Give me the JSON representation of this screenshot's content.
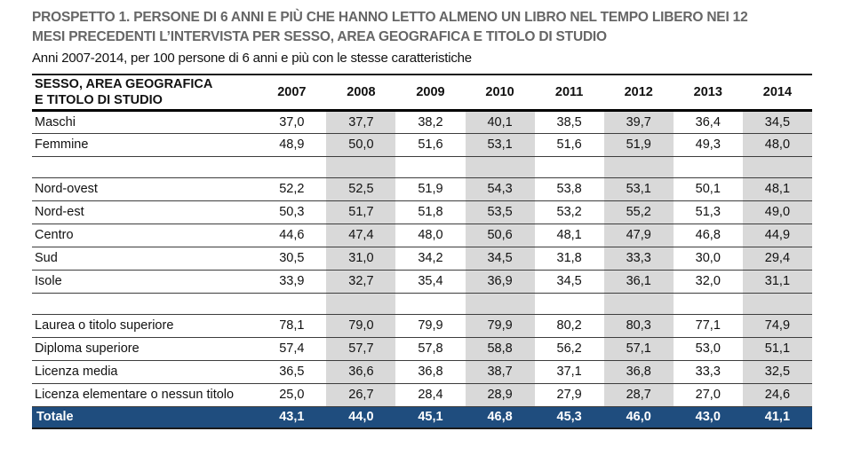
{
  "page": {
    "title_line1": "PROSPETTO 1. PERSONE DI 6 ANNI E PIÙ CHE HANNO LETTO ALMENO UN LIBRO NEL TEMPO LIBERO NEI 12",
    "title_line2": "MESI PRECEDENTI L’INTERVISTA PER SESSO, AREA GEOGRAFICA E TITOLO DI STUDIO",
    "subtitle": "Anni 2007-2014, per 100 persone di 6 anni e più con le stesse caratteristiche"
  },
  "table": {
    "header": {
      "label_line1": "SESSO, AREA GEOGRAFICA",
      "label_line2": "E TITOLO DI STUDIO",
      "years": [
        "2007",
        "2008",
        "2009",
        "2010",
        "2011",
        "2012",
        "2013",
        "2014"
      ]
    },
    "shaded_years": [
      "2008",
      "2010",
      "2012",
      "2014"
    ],
    "sections": [
      {
        "name": "sesso",
        "rows": [
          {
            "label": "Maschi",
            "values": [
              "37,0",
              "37,7",
              "38,2",
              "40,1",
              "38,5",
              "39,7",
              "36,4",
              "34,5"
            ]
          },
          {
            "label": "Femmine",
            "values": [
              "48,9",
              "50,0",
              "51,6",
              "53,1",
              "51,6",
              "51,9",
              "49,3",
              "48,0"
            ]
          }
        ]
      },
      {
        "name": "area-geografica",
        "rows": [
          {
            "label": "Nord-ovest",
            "values": [
              "52,2",
              "52,5",
              "51,9",
              "54,3",
              "53,8",
              "53,1",
              "50,1",
              "48,1"
            ]
          },
          {
            "label": "Nord-est",
            "values": [
              "50,3",
              "51,7",
              "51,8",
              "53,5",
              "53,2",
              "55,2",
              "51,3",
              "49,0"
            ]
          },
          {
            "label": "Centro",
            "values": [
              "44,6",
              "47,4",
              "48,0",
              "50,6",
              "48,1",
              "47,9",
              "46,8",
              "44,9"
            ]
          },
          {
            "label": "Sud",
            "values": [
              "30,5",
              "31,0",
              "34,2",
              "34,5",
              "31,8",
              "33,3",
              "30,0",
              "29,4"
            ]
          },
          {
            "label": "Isole",
            "values": [
              "33,9",
              "32,7",
              "35,4",
              "36,9",
              "34,5",
              "36,1",
              "32,0",
              "31,1"
            ]
          }
        ]
      },
      {
        "name": "titolo-di-studio",
        "rows": [
          {
            "label": "Laurea o titolo superiore",
            "values": [
              "78,1",
              "79,0",
              "79,9",
              "79,9",
              "80,2",
              "80,3",
              "77,1",
              "74,9"
            ]
          },
          {
            "label": "Diploma superiore",
            "values": [
              "57,4",
              "57,7",
              "57,8",
              "58,8",
              "56,2",
              "57,1",
              "53,0",
              "51,1"
            ]
          },
          {
            "label": "Licenza media",
            "values": [
              "36,5",
              "36,6",
              "36,8",
              "38,7",
              "37,1",
              "36,8",
              "33,3",
              "32,5"
            ]
          },
          {
            "label": "Licenza elementare o nessun titolo",
            "values": [
              "25,0",
              "26,7",
              "28,4",
              "28,9",
              "27,9",
              "28,7",
              "27,0",
              "24,6"
            ]
          }
        ]
      }
    ],
    "total": {
      "label": "Totale",
      "values": [
        "43,1",
        "44,0",
        "45,1",
        "46,8",
        "45,3",
        "46,0",
        "43,0",
        "41,1"
      ]
    }
  },
  "colors": {
    "total_row_blue": "#1f4d7e",
    "shaded_column_gray": "#d9d9d9",
    "title_gray": "#666666"
  }
}
